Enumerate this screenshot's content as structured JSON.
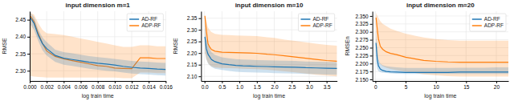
{
  "chart_data": [
    {
      "type": "line",
      "title": "input dimension m=1",
      "xlabel": "log train time",
      "ylabel": "RMSE",
      "xlim": [
        0,
        0.016
      ],
      "ylim": [
        2.27,
        2.475
      ],
      "xticks": [
        {
          "value": 0,
          "label": "0.000"
        },
        0.002,
        0.004,
        0.006,
        0.008,
        {
          "value": 0.01,
          "label": "0.010"
        },
        0.012,
        0.014,
        0.016
      ],
      "yticks": [
        {
          "value": 2.3,
          "label": "2.30"
        },
        2.35,
        {
          "value": 2.4,
          "label": "2.40"
        },
        2.45
      ],
      "grid": true,
      "legend": "upper right",
      "series": [
        {
          "name": "AD-RF",
          "x": [
            0.0001,
            0.0005,
            0.001,
            0.0015,
            0.002,
            0.003,
            0.004,
            0.005,
            0.006,
            0.007,
            0.008,
            0.009,
            0.01,
            0.011,
            0.012,
            0.013,
            0.014,
            0.015,
            0.016
          ],
          "values": [
            2.455,
            2.44,
            2.405,
            2.38,
            2.365,
            2.345,
            2.337,
            2.333,
            2.329,
            2.325,
            2.322,
            2.32,
            2.317,
            2.313,
            2.31,
            2.308,
            2.307,
            2.305,
            2.304
          ],
          "lower": [
            2.435,
            2.42,
            2.388,
            2.36,
            2.345,
            2.326,
            2.318,
            2.314,
            2.31,
            2.306,
            2.303,
            2.3,
            2.298,
            2.295,
            2.292,
            2.29,
            2.289,
            2.287,
            2.286
          ],
          "upper": [
            2.47,
            2.458,
            2.422,
            2.398,
            2.384,
            2.362,
            2.355,
            2.351,
            2.347,
            2.343,
            2.34,
            2.338,
            2.335,
            2.332,
            2.329,
            2.327,
            2.326,
            2.324,
            2.323
          ]
        },
        {
          "name": "ADP-RF",
          "x": [
            0.0001,
            0.0005,
            0.001,
            0.0015,
            0.002,
            0.003,
            0.004,
            0.005,
            0.006,
            0.007,
            0.008,
            0.009,
            0.01,
            0.011,
            0.012,
            0.013,
            0.014,
            0.015,
            0.016
          ],
          "values": [
            2.46,
            2.445,
            2.41,
            2.38,
            2.358,
            2.342,
            2.335,
            2.33,
            2.325,
            2.32,
            2.315,
            2.313,
            2.308,
            2.307,
            2.306,
            2.338,
            2.338,
            2.336,
            2.336
          ],
          "lower": [
            2.285,
            2.283,
            2.282,
            2.281,
            2.28,
            2.28,
            2.28,
            2.28,
            2.28,
            2.28,
            2.28,
            2.28,
            2.28,
            2.278,
            2.278,
            2.295,
            2.295,
            2.293,
            2.293
          ],
          "upper": [
            2.47,
            2.465,
            2.44,
            2.42,
            2.41,
            2.408,
            2.405,
            2.4,
            2.395,
            2.39,
            2.385,
            2.38,
            2.375,
            2.37,
            2.37,
            2.375,
            2.375,
            2.372,
            2.372
          ]
        }
      ]
    },
    {
      "type": "line",
      "title": "input dimension m=10",
      "xlabel": "log train time",
      "ylabel": "RMSE",
      "xlim": [
        -0.1,
        3.8
      ],
      "ylim": [
        2.08,
        2.38
      ],
      "xticks": [
        {
          "value": 0,
          "label": "0.0"
        },
        0.5,
        {
          "value": 1,
          "label": "1.0"
        },
        1.5,
        {
          "value": 2,
          "label": "2.0"
        },
        2.5,
        {
          "value": 3,
          "label": "3.0"
        },
        3.5
      ],
      "yticks": [
        {
          "value": 2.1,
          "label": "2.10"
        },
        2.15,
        {
          "value": 2.2,
          "label": "2.20"
        },
        2.25,
        {
          "value": 2.3,
          "label": "2.30"
        },
        2.35
      ],
      "grid": true,
      "legend": "upper right",
      "series": [
        {
          "name": "AD-RF",
          "x": [
            0.01,
            0.05,
            0.1,
            0.2,
            0.3,
            0.5,
            0.7,
            0.9,
            1.1,
            1.3,
            1.5,
            1.8,
            2.0,
            2.3,
            2.6,
            2.9,
            3.2,
            3.5,
            3.8
          ],
          "values": [
            2.27,
            2.22,
            2.195,
            2.172,
            2.163,
            2.154,
            2.15,
            2.147,
            2.145,
            2.144,
            2.143,
            2.142,
            2.141,
            2.14,
            2.139,
            2.137,
            2.136,
            2.135,
            2.134
          ],
          "lower": [
            2.21,
            2.175,
            2.155,
            2.14,
            2.133,
            2.127,
            2.123,
            2.12,
            2.118,
            2.117,
            2.116,
            2.115,
            2.114,
            2.113,
            2.112,
            2.11,
            2.109,
            2.108,
            2.107
          ],
          "upper": [
            2.33,
            2.265,
            2.235,
            2.203,
            2.192,
            2.182,
            2.177,
            2.174,
            2.172,
            2.171,
            2.17,
            2.169,
            2.168,
            2.167,
            2.166,
            2.164,
            2.163,
            2.162,
            2.161
          ]
        },
        {
          "name": "ADP-RF",
          "x": [
            0.01,
            0.05,
            0.1,
            0.15,
            0.2,
            0.3,
            0.5,
            0.7,
            0.9,
            1.1,
            1.3,
            1.5,
            1.8,
            2.0,
            2.3,
            2.6,
            2.9,
            3.2,
            3.5,
            3.8
          ],
          "values": [
            2.36,
            2.3,
            2.24,
            2.225,
            2.215,
            2.208,
            2.204,
            2.203,
            2.202,
            2.201,
            2.2,
            2.199,
            2.195,
            2.193,
            2.188,
            2.183,
            2.178,
            2.173,
            2.168,
            2.165
          ],
          "lower": [
            2.2,
            2.175,
            2.158,
            2.148,
            2.143,
            2.138,
            2.136,
            2.135,
            2.134,
            2.133,
            2.132,
            2.131,
            2.128,
            2.126,
            2.121,
            2.117,
            2.112,
            2.107,
            2.103,
            2.1
          ],
          "upper": [
            2.36,
            2.34,
            2.31,
            2.298,
            2.29,
            2.283,
            2.278,
            2.277,
            2.276,
            2.275,
            2.274,
            2.273,
            2.268,
            2.265,
            2.258,
            2.252,
            2.246,
            2.24,
            2.235,
            2.232
          ]
        }
      ]
    },
    {
      "type": "line",
      "title": "input dimension m=20",
      "xlabel": "log train time",
      "ylabel": "RMSEn",
      "xlim": [
        -0.5,
        22
      ],
      "ylim": [
        2.145,
        2.365
      ],
      "xticks": [
        0,
        5,
        10,
        15,
        20
      ],
      "yticks": [
        {
          "value": 2.15,
          "label": "2.150"
        },
        2.175,
        {
          "value": 2.2,
          "label": "2.200"
        },
        2.225,
        {
          "value": 2.25,
          "label": "2.250"
        },
        2.275,
        {
          "value": 2.3,
          "label": "2.300"
        },
        2.325,
        {
          "value": 2.35,
          "label": "2.350"
        }
      ],
      "grid": true,
      "legend": "upper right",
      "series": [
        {
          "name": "AD-RF",
          "x": [
            0.1,
            0.3,
            0.5,
            0.8,
            1.2,
            1.8,
            2.5,
            3.5,
            5.0,
            6.5,
            8.0,
            10.0,
            12.0,
            14.0,
            16.0,
            18.0,
            20.0,
            22.0
          ],
          "values": [
            2.265,
            2.215,
            2.193,
            2.183,
            2.178,
            2.175,
            2.174,
            2.173,
            2.172,
            2.172,
            2.172,
            2.172,
            2.172,
            2.173,
            2.173,
            2.173,
            2.173,
            2.173
          ],
          "lower": [
            2.205,
            2.183,
            2.176,
            2.173,
            2.171,
            2.17,
            2.169,
            2.168,
            2.167,
            2.167,
            2.167,
            2.167,
            2.167,
            2.167,
            2.167,
            2.167,
            2.167,
            2.167
          ],
          "upper": [
            2.31,
            2.242,
            2.213,
            2.2,
            2.195,
            2.192,
            2.19,
            2.188,
            2.186,
            2.186,
            2.186,
            2.186,
            2.186,
            2.187,
            2.187,
            2.187,
            2.188,
            2.188
          ]
        },
        {
          "name": "ADP-RF",
          "x": [
            0.1,
            0.3,
            0.5,
            0.8,
            1.2,
            1.8,
            2.5,
            3.5,
            5.0,
            6.5,
            8.0,
            10.0,
            12.0,
            14.0,
            16.0,
            18.0,
            20.0,
            22.0
          ],
          "values": [
            2.345,
            2.31,
            2.278,
            2.255,
            2.245,
            2.237,
            2.232,
            2.228,
            2.22,
            2.215,
            2.21,
            2.207,
            2.205,
            2.204,
            2.204,
            2.204,
            2.204,
            2.204
          ],
          "lower": [
            2.245,
            2.225,
            2.208,
            2.198,
            2.192,
            2.187,
            2.183,
            2.179,
            2.174,
            2.17,
            2.166,
            2.163,
            2.16,
            2.159,
            2.159,
            2.159,
            2.159,
            2.159
          ],
          "upper": [
            2.36,
            2.352,
            2.344,
            2.334,
            2.325,
            2.318,
            2.31,
            2.303,
            2.294,
            2.288,
            2.282,
            2.277,
            2.274,
            2.272,
            2.272,
            2.272,
            2.272,
            2.272
          ]
        }
      ]
    }
  ]
}
